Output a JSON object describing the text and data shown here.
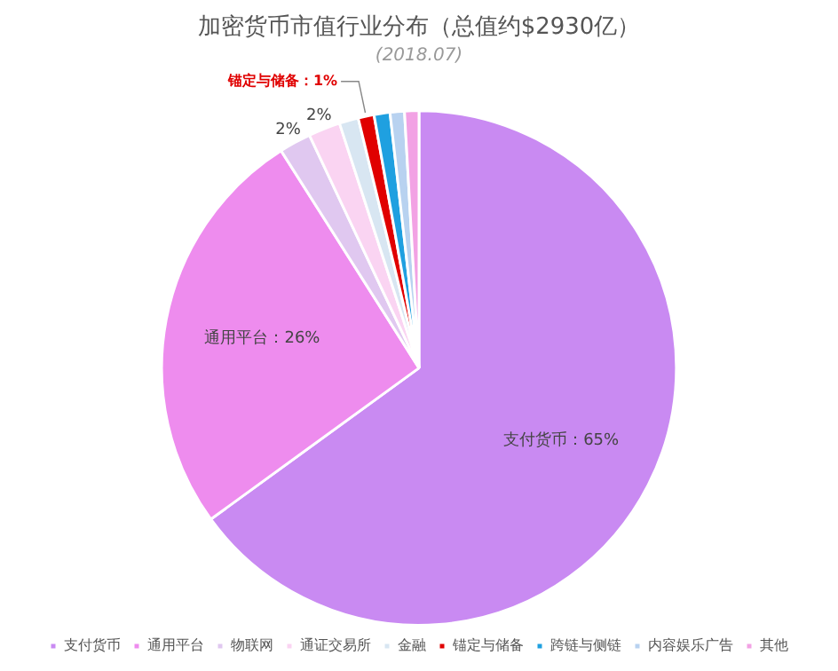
{
  "chart_data": {
    "type": "pie",
    "title": "加密货币市值行业分布（总值约$2930亿）",
    "subtitle": "(2018.07)",
    "categories": [
      "支付货币",
      "通用平台",
      "物联网",
      "通证交易所",
      "金融",
      "锚定与储备",
      "跨链与侧链",
      "内容娱乐广告",
      "其他"
    ],
    "values": [
      65,
      26,
      2,
      2,
      1.2,
      1,
      1,
      0.9,
      0.9
    ],
    "colors": [
      "#c98af2",
      "#ee8cee",
      "#e0c8f0",
      "#fad4f2",
      "#d8e6f2",
      "#e00000",
      "#1fa0e0",
      "#b8d2f0",
      "#f2a2e4"
    ],
    "value_labels": [
      "支付货币：65%",
      "通用平台：26%",
      "2%",
      "2%",
      null,
      "锚定与储备：1%",
      null,
      null,
      null
    ],
    "legend": "bottom"
  }
}
